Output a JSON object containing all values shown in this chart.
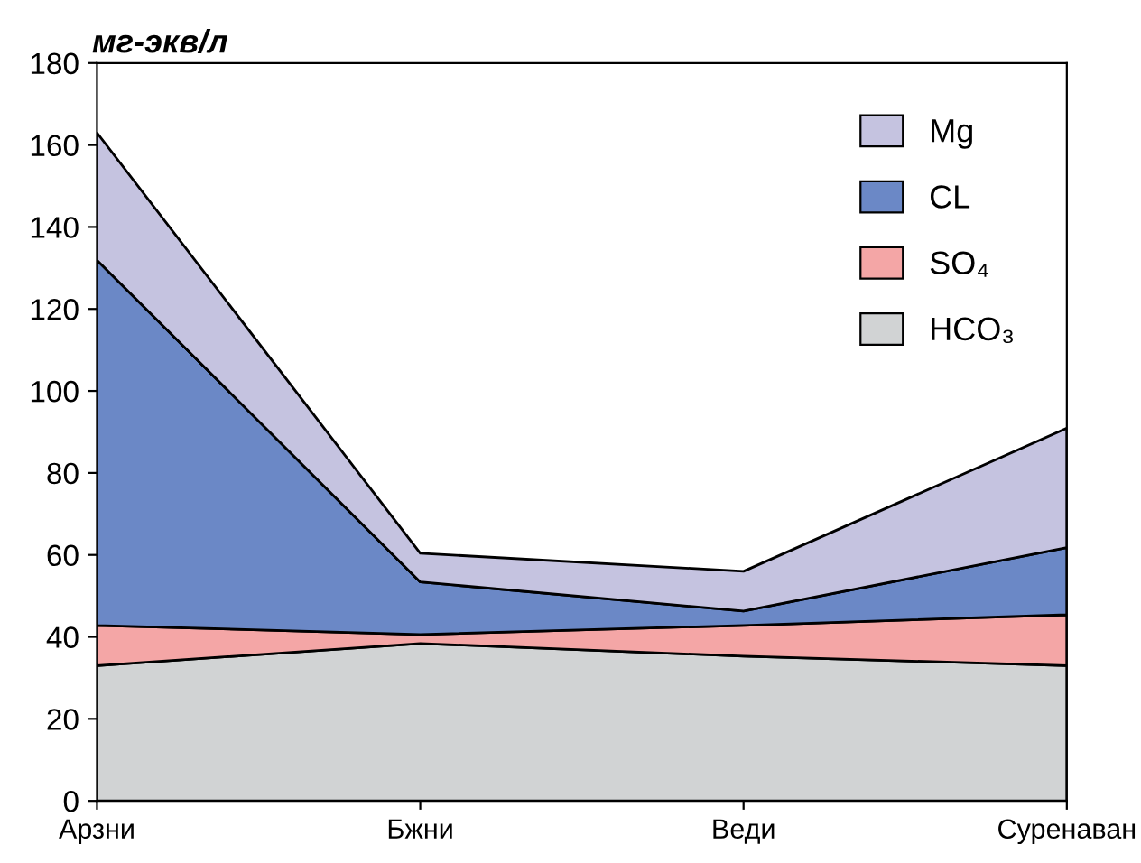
{
  "chart_data": {
    "type": "area",
    "stacked": true,
    "ylabel": "мг-экв/л",
    "categories": [
      "Арзни",
      "Бжни",
      "Веди",
      "Суренаван"
    ],
    "series": [
      {
        "name": "HCO₃",
        "color": "#d1d3d4",
        "values": [
          33,
          38.4,
          35.3,
          33
        ]
      },
      {
        "name": "SO₄",
        "color": "#f4a6a6",
        "values": [
          9.8,
          2.2,
          7.5,
          12.4
        ]
      },
      {
        "name": "CL",
        "color": "#6b88c6",
        "values": [
          89.1,
          12.8,
          3.5,
          16.4
        ]
      },
      {
        "name": "Mg",
        "color": "#c5c3e0",
        "values": [
          31.1,
          7,
          9.7,
          29.1
        ]
      }
    ],
    "ylim": [
      0,
      180
    ],
    "yticks": [
      0,
      20,
      40,
      60,
      80,
      100,
      120,
      140,
      160,
      180
    ],
    "grid": false,
    "legend": "top right"
  }
}
